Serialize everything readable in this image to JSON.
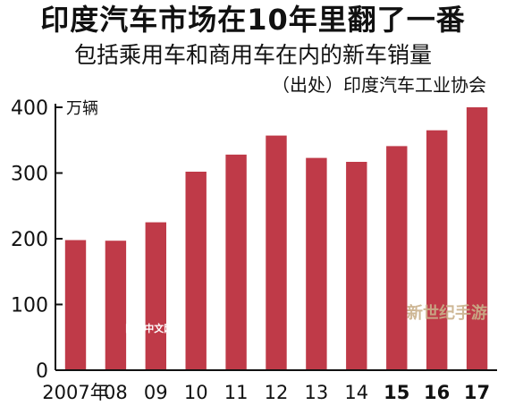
{
  "header": {
    "title": "印度汽车市场在10年里翻了一番",
    "subtitle": "包括乘用车和商用车在内的新车销量",
    "source": "（出处）印度汽车工业协会"
  },
  "chart_data": {
    "type": "bar",
    "categories": [
      "2007年",
      "08",
      "09",
      "10",
      "11",
      "12",
      "13",
      "14",
      "15",
      "16",
      "17"
    ],
    "bold_categories": [
      "15",
      "16",
      "17"
    ],
    "values": [
      198,
      197,
      225,
      302,
      328,
      357,
      323,
      317,
      341,
      365,
      400
    ],
    "ylim": [
      0,
      400
    ],
    "yticks": [
      0,
      100,
      200,
      300,
      400
    ],
    "yunit": "万辆",
    "title": "印度汽车市场在10年里翻了一番",
    "subtitle": "包括乘用车和商用车在内的新车销量",
    "source": "（出处）印度汽车工业协会",
    "bar_color": "#bf3a48",
    "grid": false
  },
  "watermarks": {
    "left": "日经中文网",
    "right": "新世纪手游"
  }
}
